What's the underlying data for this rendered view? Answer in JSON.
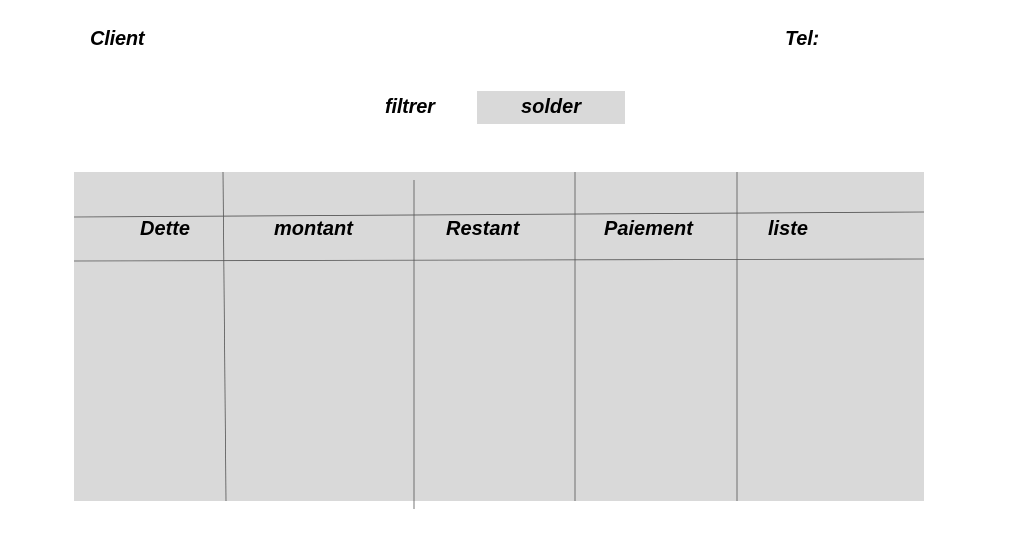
{
  "header": {
    "client_label": "Client",
    "tel_label": "Tel:"
  },
  "filter": {
    "label": "filtrer",
    "solder_button": "solder"
  },
  "table": {
    "columns": [
      "Dette",
      "montant",
      "Restant",
      "Paiement",
      "liste"
    ],
    "rows": []
  },
  "colors": {
    "panel_background": "#d9d9d9",
    "text": "#000000",
    "grid_line": "#555555"
  }
}
